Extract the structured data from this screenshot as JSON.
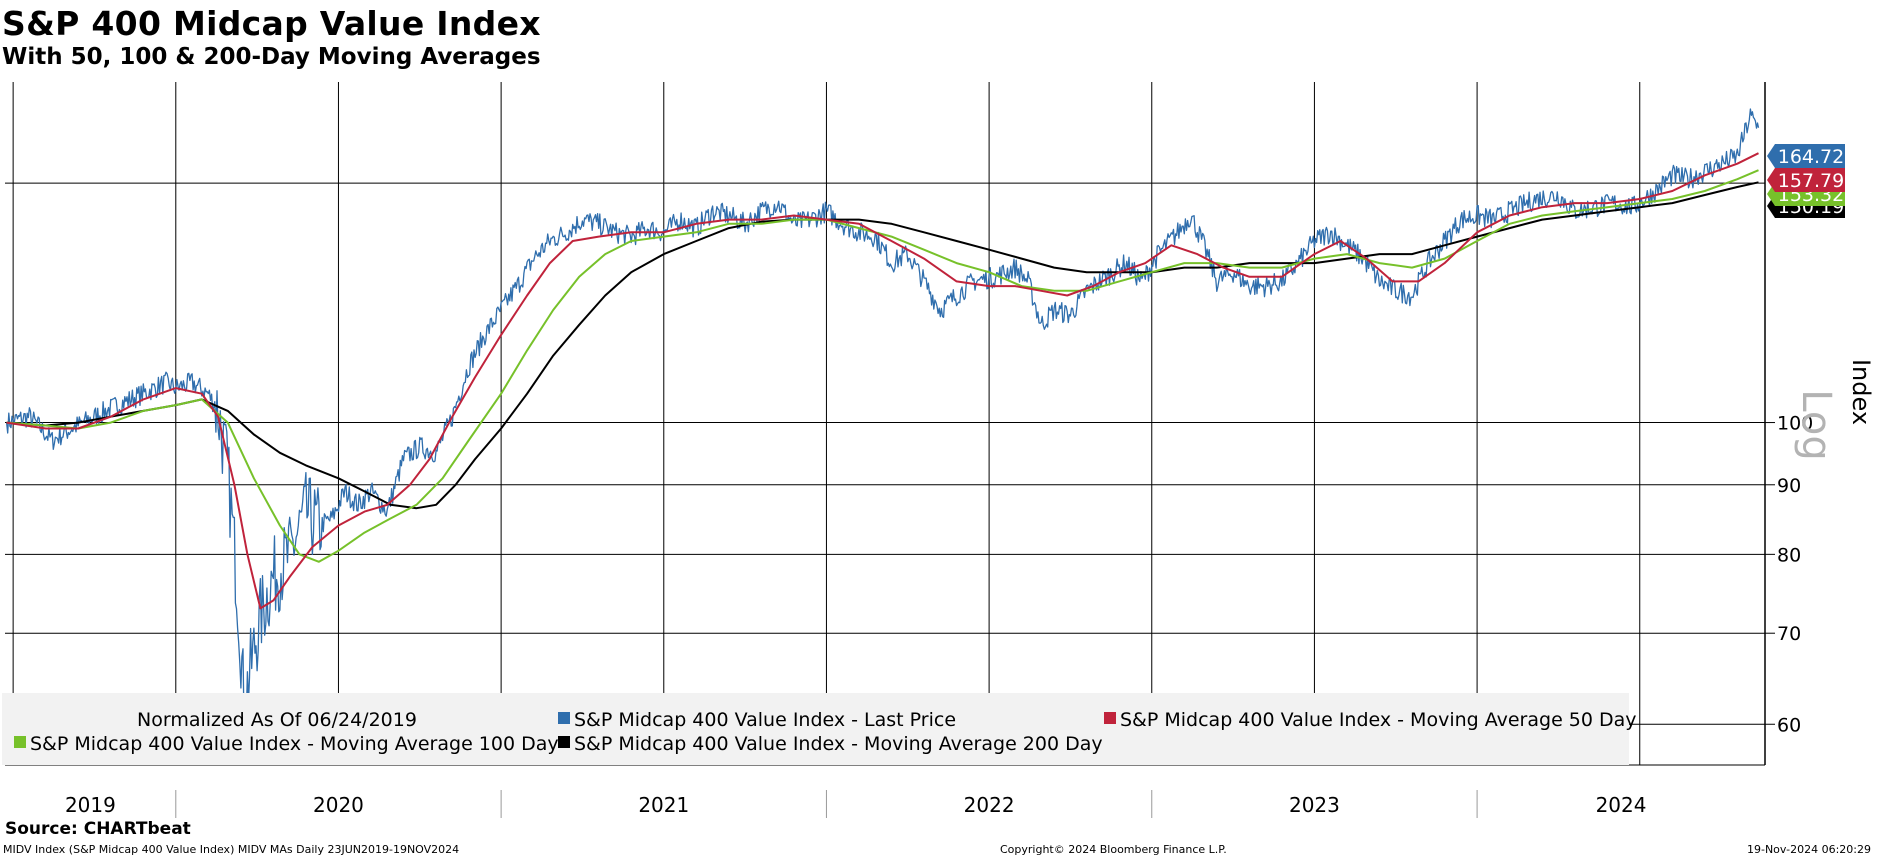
{
  "header": {
    "title": "S&P 400 Midcap Value Index",
    "subtitle": "With 50, 100 & 200-Day Moving Averages"
  },
  "chart_data": {
    "type": "line",
    "scale": "log",
    "ylabel": "Index",
    "scale_watermark": "Log",
    "ylim": [
      56,
      178
    ],
    "yticks": [
      60,
      70,
      80,
      90,
      100
    ],
    "x_start": 2019.475,
    "x_end": 2024.885,
    "year_labels": [
      "2019",
      "2020",
      "2021",
      "2022",
      "2023",
      "2024"
    ],
    "legend_note": "Normalized As Of 06/24/2019",
    "series": [
      {
        "name": "S&P Midcap 400 Value Index - Last Price",
        "color": "#2f6ead",
        "last_value": "164.72",
        "points": [
          [
            2019.48,
            100
          ],
          [
            2019.55,
            101
          ],
          [
            2019.62,
            97
          ],
          [
            2019.68,
            99
          ],
          [
            2019.75,
            101
          ],
          [
            2019.82,
            103
          ],
          [
            2019.9,
            105
          ],
          [
            2019.97,
            107
          ],
          [
            2020.0,
            106
          ],
          [
            2020.05,
            107
          ],
          [
            2020.1,
            105
          ],
          [
            2020.13,
            102
          ],
          [
            2020.16,
            92
          ],
          [
            2020.19,
            75
          ],
          [
            2020.21,
            62
          ],
          [
            2020.23,
            66
          ],
          [
            2020.26,
            72
          ],
          [
            2020.3,
            77
          ],
          [
            2020.35,
            80
          ],
          [
            2020.4,
            86
          ],
          [
            2020.44,
            84
          ],
          [
            2020.48,
            85
          ],
          [
            2020.52,
            89
          ],
          [
            2020.56,
            87
          ],
          [
            2020.6,
            89
          ],
          [
            2020.65,
            86
          ],
          [
            2020.7,
            94
          ],
          [
            2020.75,
            96
          ],
          [
            2020.8,
            95
          ],
          [
            2020.85,
            101
          ],
          [
            2020.9,
            110
          ],
          [
            2020.95,
            116
          ],
          [
            2021.0,
            121
          ],
          [
            2021.05,
            126
          ],
          [
            2021.1,
            132
          ],
          [
            2021.15,
            136
          ],
          [
            2021.2,
            138
          ],
          [
            2021.25,
            141
          ],
          [
            2021.3,
            140
          ],
          [
            2021.35,
            138
          ],
          [
            2021.4,
            137
          ],
          [
            2021.45,
            139
          ],
          [
            2021.5,
            138
          ],
          [
            2021.55,
            141
          ],
          [
            2021.6,
            139
          ],
          [
            2021.65,
            143
          ],
          [
            2021.7,
            142
          ],
          [
            2021.75,
            140
          ],
          [
            2021.8,
            143
          ],
          [
            2021.85,
            145
          ],
          [
            2021.9,
            140
          ],
          [
            2021.95,
            141
          ],
          [
            2022.0,
            143
          ],
          [
            2022.05,
            140
          ],
          [
            2022.1,
            138
          ],
          [
            2022.15,
            137
          ],
          [
            2022.2,
            131
          ],
          [
            2022.25,
            133
          ],
          [
            2022.3,
            127
          ],
          [
            2022.35,
            121
          ],
          [
            2022.4,
            124
          ],
          [
            2022.45,
            127
          ],
          [
            2022.52,
            128
          ],
          [
            2022.58,
            130
          ],
          [
            2022.62,
            127
          ],
          [
            2022.66,
            118
          ],
          [
            2022.7,
            121
          ],
          [
            2022.75,
            120
          ],
          [
            2022.8,
            125
          ],
          [
            2022.86,
            128
          ],
          [
            2022.92,
            131
          ],
          [
            2022.97,
            127
          ],
          [
            2023.02,
            133
          ],
          [
            2023.08,
            138
          ],
          [
            2023.12,
            142
          ],
          [
            2023.16,
            135
          ],
          [
            2023.2,
            127
          ],
          [
            2023.25,
            129
          ],
          [
            2023.3,
            126
          ],
          [
            2023.35,
            126
          ],
          [
            2023.4,
            127
          ],
          [
            2023.45,
            131
          ],
          [
            2023.5,
            136
          ],
          [
            2023.55,
            138
          ],
          [
            2023.6,
            135
          ],
          [
            2023.65,
            132
          ],
          [
            2023.7,
            127
          ],
          [
            2023.75,
            125
          ],
          [
            2023.8,
            124
          ],
          [
            2023.85,
            131
          ],
          [
            2023.9,
            136
          ],
          [
            2023.95,
            141
          ],
          [
            2024.0,
            142
          ],
          [
            2024.05,
            141
          ],
          [
            2024.1,
            143
          ],
          [
            2024.18,
            146
          ],
          [
            2024.25,
            147
          ],
          [
            2024.3,
            143
          ],
          [
            2024.36,
            144
          ],
          [
            2024.42,
            145
          ],
          [
            2024.48,
            144
          ],
          [
            2024.55,
            148
          ],
          [
            2024.6,
            152
          ],
          [
            2024.65,
            151
          ],
          [
            2024.7,
            153
          ],
          [
            2024.75,
            155
          ],
          [
            2024.8,
            157
          ],
          [
            2024.84,
            168
          ],
          [
            2024.865,
            164.72
          ]
        ]
      },
      {
        "name": "S&P Midcap 400 Value Index - Moving Average 50 Day",
        "color": "#c0233b",
        "last_value": "157.79",
        "points": [
          [
            2019.48,
            100
          ],
          [
            2019.6,
            99
          ],
          [
            2019.7,
            99
          ],
          [
            2019.8,
            101
          ],
          [
            2019.9,
            104
          ],
          [
            2020.0,
            106
          ],
          [
            2020.08,
            105
          ],
          [
            2020.13,
            101
          ],
          [
            2020.18,
            90
          ],
          [
            2020.22,
            80
          ],
          [
            2020.26,
            73
          ],
          [
            2020.3,
            74
          ],
          [
            2020.35,
            77
          ],
          [
            2020.42,
            81
          ],
          [
            2020.5,
            84
          ],
          [
            2020.58,
            86
          ],
          [
            2020.65,
            87
          ],
          [
            2020.72,
            90
          ],
          [
            2020.78,
            94
          ],
          [
            2020.85,
            101
          ],
          [
            2020.92,
            108
          ],
          [
            2021.0,
            116
          ],
          [
            2021.08,
            124
          ],
          [
            2021.15,
            131
          ],
          [
            2021.22,
            136
          ],
          [
            2021.3,
            137
          ],
          [
            2021.4,
            138
          ],
          [
            2021.5,
            138
          ],
          [
            2021.6,
            140
          ],
          [
            2021.7,
            141
          ],
          [
            2021.8,
            141
          ],
          [
            2021.9,
            142
          ],
          [
            2022.0,
            141
          ],
          [
            2022.1,
            140
          ],
          [
            2022.2,
            136
          ],
          [
            2022.3,
            132
          ],
          [
            2022.4,
            127
          ],
          [
            2022.5,
            126
          ],
          [
            2022.58,
            126
          ],
          [
            2022.66,
            125
          ],
          [
            2022.74,
            124
          ],
          [
            2022.82,
            126
          ],
          [
            2022.9,
            129
          ],
          [
            2022.98,
            131
          ],
          [
            2023.06,
            135
          ],
          [
            2023.14,
            133
          ],
          [
            2023.22,
            130
          ],
          [
            2023.3,
            128
          ],
          [
            2023.4,
            128
          ],
          [
            2023.5,
            133
          ],
          [
            2023.58,
            136
          ],
          [
            2023.66,
            132
          ],
          [
            2023.74,
            127
          ],
          [
            2023.82,
            127
          ],
          [
            2023.9,
            131
          ],
          [
            2024.0,
            138
          ],
          [
            2024.1,
            142
          ],
          [
            2024.2,
            144
          ],
          [
            2024.3,
            145
          ],
          [
            2024.4,
            145
          ],
          [
            2024.5,
            146
          ],
          [
            2024.6,
            148
          ],
          [
            2024.7,
            152
          ],
          [
            2024.8,
            155
          ],
          [
            2024.865,
            157.79
          ]
        ]
      },
      {
        "name": "S&P Midcap 400 Value Index - Moving Average 100 Day",
        "color": "#77c12a",
        "last_value": "153.32",
        "points": [
          [
            2019.48,
            100
          ],
          [
            2019.6,
            99.5
          ],
          [
            2019.7,
            99
          ],
          [
            2019.8,
            100
          ],
          [
            2019.9,
            102
          ],
          [
            2020.0,
            103
          ],
          [
            2020.08,
            104
          ],
          [
            2020.16,
            100
          ],
          [
            2020.24,
            91
          ],
          [
            2020.32,
            84
          ],
          [
            2020.38,
            80
          ],
          [
            2020.44,
            79
          ],
          [
            2020.5,
            80.5
          ],
          [
            2020.58,
            83
          ],
          [
            2020.66,
            85
          ],
          [
            2020.74,
            87
          ],
          [
            2020.82,
            91
          ],
          [
            2020.9,
            97
          ],
          [
            2021.0,
            105
          ],
          [
            2021.08,
            113
          ],
          [
            2021.16,
            121
          ],
          [
            2021.24,
            128
          ],
          [
            2021.32,
            133
          ],
          [
            2021.4,
            136
          ],
          [
            2021.5,
            137
          ],
          [
            2021.6,
            138
          ],
          [
            2021.7,
            140
          ],
          [
            2021.8,
            140
          ],
          [
            2021.9,
            141
          ],
          [
            2022.0,
            141
          ],
          [
            2022.1,
            139
          ],
          [
            2022.2,
            137
          ],
          [
            2022.3,
            134
          ],
          [
            2022.4,
            131
          ],
          [
            2022.5,
            129
          ],
          [
            2022.6,
            126
          ],
          [
            2022.7,
            125
          ],
          [
            2022.8,
            125
          ],
          [
            2022.9,
            127
          ],
          [
            2023.0,
            129
          ],
          [
            2023.1,
            131
          ],
          [
            2023.2,
            131
          ],
          [
            2023.3,
            130
          ],
          [
            2023.4,
            130
          ],
          [
            2023.5,
            132
          ],
          [
            2023.6,
            133
          ],
          [
            2023.7,
            131
          ],
          [
            2023.8,
            130
          ],
          [
            2023.9,
            132
          ],
          [
            2024.0,
            136
          ],
          [
            2024.1,
            140
          ],
          [
            2024.2,
            142
          ],
          [
            2024.3,
            143
          ],
          [
            2024.4,
            144
          ],
          [
            2024.5,
            145
          ],
          [
            2024.6,
            146
          ],
          [
            2024.7,
            148
          ],
          [
            2024.8,
            151
          ],
          [
            2024.865,
            153.32
          ]
        ]
      },
      {
        "name": "S&P Midcap 400 Value Index - Moving Average 200 Day",
        "color": "#000000",
        "last_value": "150.19",
        "points": [
          [
            2019.48,
            100
          ],
          [
            2019.6,
            99.5
          ],
          [
            2019.7,
            100
          ],
          [
            2019.8,
            101
          ],
          [
            2019.9,
            102
          ],
          [
            2020.0,
            103
          ],
          [
            2020.08,
            104
          ],
          [
            2020.16,
            102
          ],
          [
            2020.24,
            98
          ],
          [
            2020.32,
            95
          ],
          [
            2020.4,
            93
          ],
          [
            2020.5,
            91
          ],
          [
            2020.58,
            89
          ],
          [
            2020.66,
            87
          ],
          [
            2020.74,
            86.5
          ],
          [
            2020.8,
            87
          ],
          [
            2020.86,
            90
          ],
          [
            2020.92,
            94
          ],
          [
            2021.0,
            99
          ],
          [
            2021.08,
            105
          ],
          [
            2021.16,
            112
          ],
          [
            2021.24,
            118
          ],
          [
            2021.32,
            124
          ],
          [
            2021.4,
            129
          ],
          [
            2021.5,
            133
          ],
          [
            2021.6,
            136
          ],
          [
            2021.7,
            139
          ],
          [
            2021.8,
            140.5
          ],
          [
            2021.9,
            141
          ],
          [
            2022.0,
            141
          ],
          [
            2022.1,
            141
          ],
          [
            2022.2,
            140
          ],
          [
            2022.3,
            138
          ],
          [
            2022.4,
            136
          ],
          [
            2022.5,
            134
          ],
          [
            2022.6,
            132
          ],
          [
            2022.7,
            130
          ],
          [
            2022.8,
            129
          ],
          [
            2022.9,
            129
          ],
          [
            2023.0,
            129
          ],
          [
            2023.1,
            130
          ],
          [
            2023.2,
            130
          ],
          [
            2023.3,
            131
          ],
          [
            2023.4,
            131
          ],
          [
            2023.5,
            131
          ],
          [
            2023.6,
            132
          ],
          [
            2023.7,
            133
          ],
          [
            2023.8,
            133
          ],
          [
            2023.9,
            135
          ],
          [
            2024.0,
            137
          ],
          [
            2024.1,
            139
          ],
          [
            2024.2,
            141
          ],
          [
            2024.3,
            142
          ],
          [
            2024.4,
            143
          ],
          [
            2024.5,
            144
          ],
          [
            2024.6,
            145
          ],
          [
            2024.7,
            147
          ],
          [
            2024.8,
            149
          ],
          [
            2024.865,
            150.19
          ]
        ]
      }
    ]
  },
  "footer": {
    "source": "Source: CHARTbeat",
    "ticker": "MIDV Index (S&P Midcap 400 Value Index) MIDV MAs  Daily 23JUN2019-19NOV2024",
    "copyright": "Copyright© 2024 Bloomberg Finance L.P.",
    "timestamp": "19-Nov-2024 06:20:29"
  }
}
